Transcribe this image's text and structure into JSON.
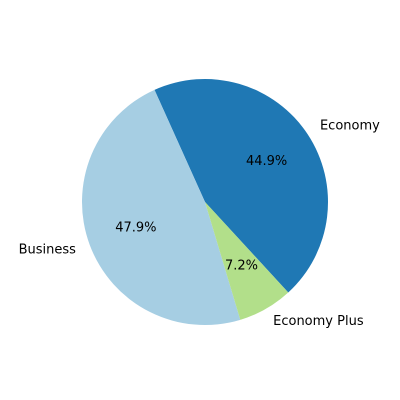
{
  "chart_data": {
    "type": "pie",
    "categories": [
      "Economy",
      "Business",
      "Economy Plus"
    ],
    "values": [
      44.9,
      47.9,
      7.2
    ],
    "percent_labels": [
      "44.9%",
      "47.9%",
      "7.2%"
    ],
    "colors": [
      "#1f78b4",
      "#a6cee3",
      "#b2df8a"
    ],
    "title": "",
    "legend": "none"
  }
}
